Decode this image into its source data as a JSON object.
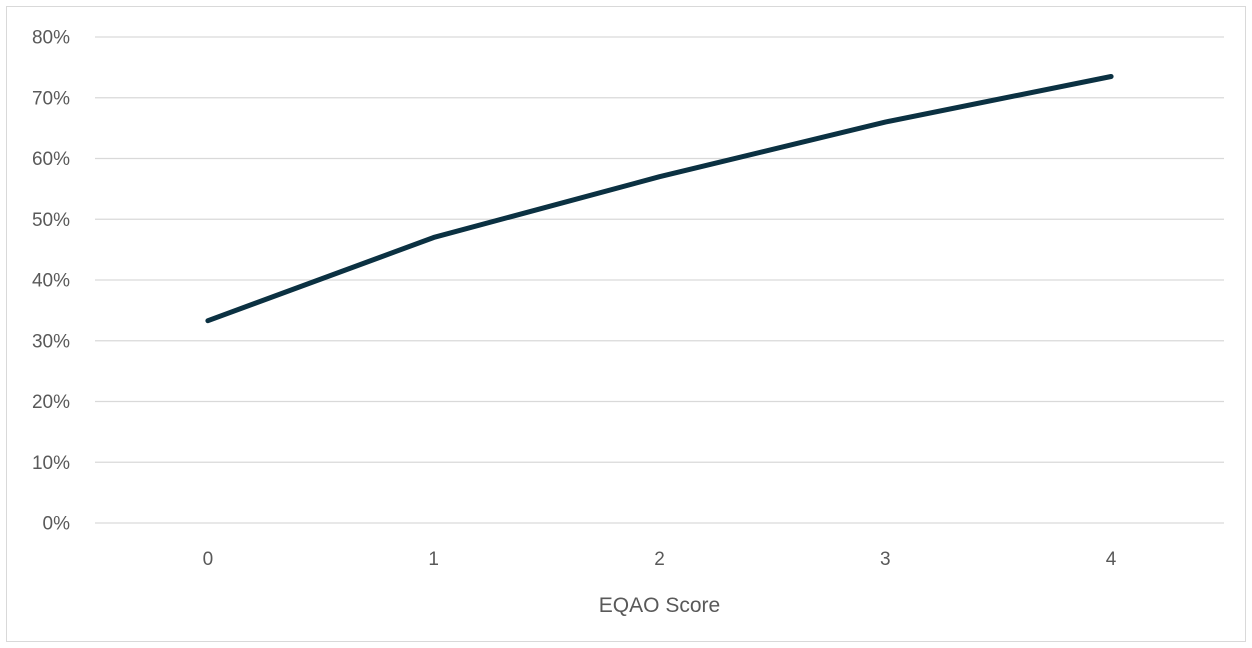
{
  "chart_data": {
    "type": "line",
    "title": "",
    "xlabel": "EQAO Score",
    "ylabel": "",
    "x": [
      0,
      1,
      2,
      3,
      4
    ],
    "categories": [
      "0",
      "1",
      "2",
      "3",
      "4"
    ],
    "series": [
      {
        "values": [
          0.333,
          0.47,
          0.57,
          0.66,
          0.735
        ],
        "color": "#0b3142"
      }
    ],
    "ylim": [
      0,
      0.8
    ],
    "yticks": [
      0,
      0.1,
      0.2,
      0.3,
      0.4,
      0.5,
      0.6,
      0.7,
      0.8
    ],
    "ytick_labels": [
      "0%",
      "10%",
      "20%",
      "30%",
      "40%",
      "50%",
      "60%",
      "70%",
      "80%"
    ],
    "grid": true,
    "legend": "none"
  }
}
